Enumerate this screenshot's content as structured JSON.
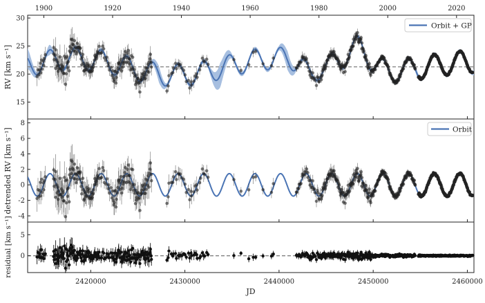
{
  "chart_data": {
    "type": "line",
    "x_unit_label": "JD",
    "top_axis_ticks": [
      "1900",
      "1920",
      "1940",
      "1960",
      "1980",
      "2000",
      "2020"
    ],
    "panels": [
      {
        "id": "rv",
        "ylabel": "RV [km s⁻¹]",
        "ylim": [
          12,
          30.5
        ],
        "yticks": [
          15,
          20,
          25,
          30
        ],
        "hline": 21.3,
        "legend": {
          "label": "Orbit + GP",
          "placement": "top-right"
        },
        "series": [
          {
            "name": "Orbit + GP",
            "kind": "model_with_band"
          },
          {
            "kind": "observations_with_errorbars"
          }
        ]
      },
      {
        "id": "detrended",
        "ylabel": "detrended RV [km s⁻¹]",
        "ylim": [
          -4.8,
          8.5
        ],
        "yticks": [
          -4,
          -2,
          0,
          2,
          4,
          6,
          8
        ],
        "legend": {
          "label": "Orbit",
          "placement": "top-right"
        },
        "orbit": {
          "period_days": 2720,
          "amplitude": 1.45,
          "phase_jd": 2415000
        },
        "series": [
          {
            "name": "Orbit",
            "kind": "sinusoid"
          },
          {
            "kind": "observations_with_errorbars"
          }
        ]
      },
      {
        "id": "residual",
        "ylabel": "residual [km s⁻¹]",
        "ylim": [
          -4,
          8
        ],
        "yticks": [
          0,
          5
        ],
        "hline": 0,
        "series": [
          {
            "kind": "residuals_with_errorbars"
          }
        ]
      }
    ],
    "x_axis": {
      "label": "JD",
      "range": [
        2413300,
        2460700
      ],
      "ticks": [
        2420000,
        2430000,
        2440000,
        2450000,
        2460000
      ],
      "tick_labels": [
        "2420000",
        "2430000",
        "2440000",
        "2450000",
        "2460000"
      ]
    },
    "year_axis": {
      "years": [
        1900,
        1920,
        1940,
        1960,
        1980,
        2000,
        2020
      ]
    },
    "observation_epochs": [
      {
        "start": 2414300,
        "end": 2415200,
        "n": 12,
        "err": 1.2
      },
      {
        "start": 2416000,
        "end": 2418300,
        "n": 40,
        "err": 1.6
      },
      {
        "start": 2418300,
        "end": 2420800,
        "n": 45,
        "err": 1.0
      },
      {
        "start": 2420800,
        "end": 2422300,
        "n": 14,
        "err": 0.9
      },
      {
        "start": 2422300,
        "end": 2426500,
        "n": 70,
        "err": 1.2
      },
      {
        "start": 2428000,
        "end": 2432500,
        "n": 30,
        "err": 0.8
      },
      {
        "start": 2435000,
        "end": 2440000,
        "n": 8,
        "err": 0.6
      },
      {
        "start": 2441800,
        "end": 2444500,
        "n": 32,
        "err": 0.6
      },
      {
        "start": 2444500,
        "end": 2450000,
        "n": 110,
        "err": 0.6
      },
      {
        "start": 2450000,
        "end": 2454500,
        "n": 120,
        "err": 0.3
      },
      {
        "start": 2454800,
        "end": 2460600,
        "n": 220,
        "err": 0.12
      }
    ],
    "colors": {
      "model": "#4a74b4",
      "band": "#a7bfe0",
      "points": "#222222",
      "hline": "#808080"
    }
  }
}
